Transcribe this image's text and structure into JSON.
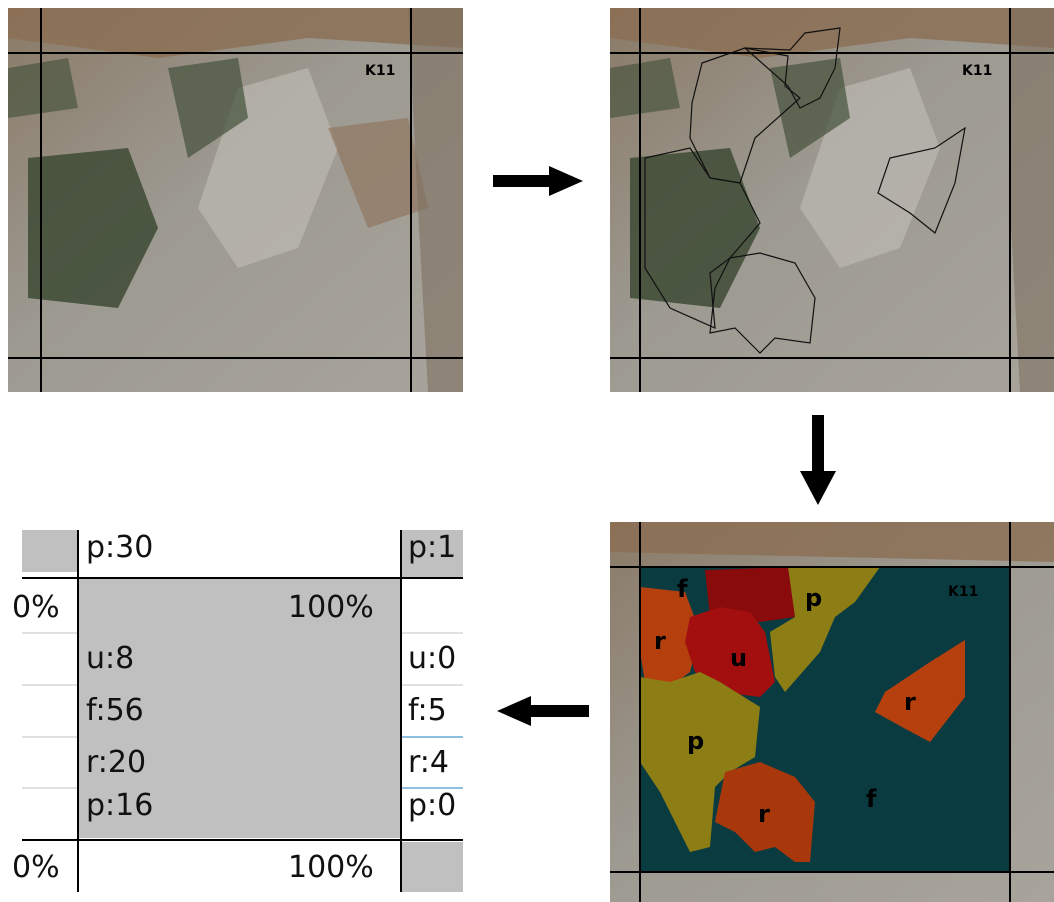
{
  "tile_label": "K11",
  "classes": {
    "f": {
      "letter": "f",
      "color": "#0a3b40"
    },
    "u": {
      "letter": "u",
      "color": "#a30f0f"
    },
    "r": {
      "letter": "r",
      "color": "#a8380c"
    },
    "p": {
      "letter": "p",
      "color": "#8c7d14"
    }
  },
  "table": {
    "top_row": {
      "left": "p:30",
      "right": "p:1"
    },
    "mid_row": {
      "left": "0%",
      "center": "100%"
    },
    "bottom_row": {
      "left": "0%",
      "center": "100%"
    },
    "center_cell": [
      "u:8",
      "f:56",
      "r:20",
      "p:16"
    ],
    "right_cell": [
      "u:0",
      "f:5",
      "r:4",
      "p:0"
    ]
  }
}
